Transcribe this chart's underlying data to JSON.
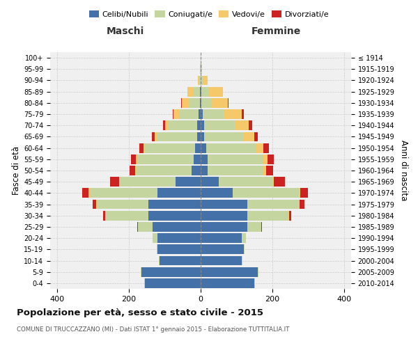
{
  "age_groups": [
    "0-4",
    "5-9",
    "10-14",
    "15-19",
    "20-24",
    "25-29",
    "30-34",
    "35-39",
    "40-44",
    "45-49",
    "50-54",
    "55-59",
    "60-64",
    "65-69",
    "70-74",
    "75-79",
    "80-84",
    "85-89",
    "90-94",
    "95-99",
    "100+"
  ],
  "birth_years": [
    "2010-2014",
    "2005-2009",
    "2000-2004",
    "1995-1999",
    "1990-1994",
    "1985-1989",
    "1980-1984",
    "1975-1979",
    "1970-1974",
    "1965-1969",
    "1960-1964",
    "1955-1959",
    "1950-1954",
    "1945-1949",
    "1940-1944",
    "1935-1939",
    "1930-1934",
    "1925-1929",
    "1920-1924",
    "1915-1919",
    "≤ 1914"
  ],
  "male": {
    "celibi": [
      155,
      165,
      115,
      120,
      120,
      135,
      145,
      145,
      120,
      70,
      25,
      20,
      15,
      10,
      10,
      5,
      2,
      2,
      0,
      0,
      0
    ],
    "coniugati": [
      2,
      2,
      2,
      3,
      15,
      40,
      120,
      145,
      190,
      155,
      155,
      155,
      140,
      110,
      80,
      55,
      30,
      20,
      5,
      2,
      0
    ],
    "vedovi": [
      0,
      0,
      0,
      0,
      0,
      0,
      2,
      2,
      3,
      3,
      3,
      5,
      5,
      8,
      10,
      15,
      20,
      15,
      3,
      0,
      0
    ],
    "divorziati": [
      0,
      0,
      0,
      0,
      0,
      2,
      5,
      10,
      18,
      25,
      15,
      15,
      12,
      8,
      5,
      3,
      2,
      0,
      0,
      0,
      0
    ]
  },
  "female": {
    "nubili": [
      150,
      160,
      115,
      120,
      115,
      130,
      130,
      130,
      90,
      50,
      20,
      20,
      15,
      10,
      10,
      5,
      2,
      2,
      0,
      0,
      0
    ],
    "coniugate": [
      2,
      2,
      2,
      3,
      12,
      40,
      115,
      145,
      185,
      150,
      155,
      155,
      140,
      110,
      85,
      60,
      28,
      20,
      5,
      2,
      0
    ],
    "vedove": [
      0,
      0,
      0,
      0,
      0,
      0,
      2,
      2,
      3,
      5,
      8,
      12,
      20,
      30,
      40,
      50,
      45,
      40,
      15,
      2,
      0
    ],
    "divorziate": [
      0,
      0,
      0,
      0,
      0,
      2,
      5,
      12,
      22,
      30,
      20,
      18,
      15,
      10,
      8,
      5,
      2,
      0,
      0,
      0,
      0
    ]
  },
  "colors": {
    "celibi": "#4472A8",
    "coniugati": "#C5D5A0",
    "vedovi": "#F5C96A",
    "divorziati": "#CC2222"
  },
  "xlim": 420,
  "title": "Popolazione per età, sesso e stato civile - 2015",
  "subtitle": "COMUNE DI TRUCCAZZANO (MI) - Dati ISTAT 1° gennaio 2015 - Elaborazione TUTTITALIA.IT",
  "ylabel_left": "Fasce di età",
  "ylabel_right": "Anni di nascita",
  "xlabel_left": "Maschi",
  "xlabel_right": "Femmine",
  "legend_labels": [
    "Celibi/Nubili",
    "Coniugati/e",
    "Vedovi/e",
    "Divorziati/e"
  ],
  "bg_color": "#f0f0f0",
  "grid_color": "#cccccc"
}
